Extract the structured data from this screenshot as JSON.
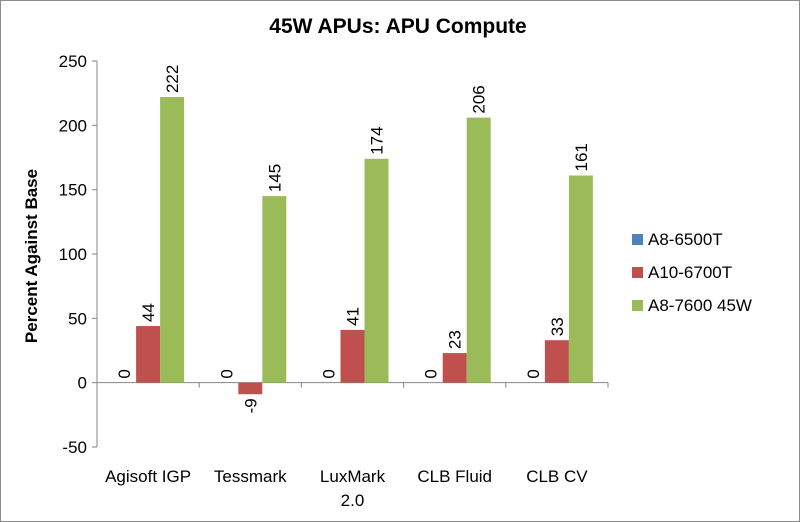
{
  "chart_data": {
    "type": "bar",
    "title": "45W APUs: APU Compute",
    "xlabel": "",
    "ylabel": "Percent Against Base",
    "ylim": [
      -50,
      250
    ],
    "yticks": [
      -50,
      0,
      50,
      100,
      150,
      200,
      250
    ],
    "categories": [
      [
        "Agisoft IGP"
      ],
      [
        "Tessmark"
      ],
      [
        "LuxMark",
        "2.0"
      ],
      [
        "CLB Fluid"
      ],
      [
        "CLB CV"
      ]
    ],
    "legend_position": "right",
    "grid": false,
    "series": [
      {
        "name": "A8-6500T",
        "color": "#4f81bd",
        "values": [
          0,
          0,
          0,
          0,
          0
        ]
      },
      {
        "name": "A10-6700T",
        "color": "#c0504d",
        "values": [
          44,
          -9,
          41,
          23,
          33
        ]
      },
      {
        "name": "A8-7600 45W",
        "color": "#9bbb59",
        "values": [
          222,
          145,
          174,
          206,
          161
        ]
      }
    ]
  }
}
